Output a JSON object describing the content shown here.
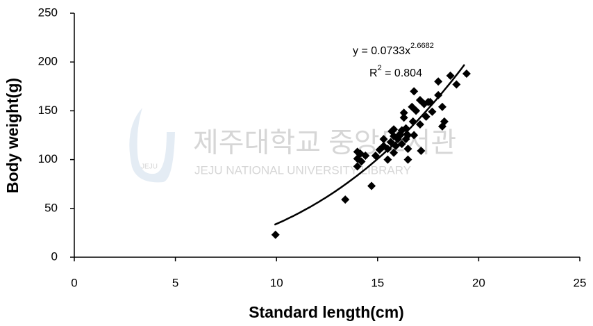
{
  "chart_data": {
    "type": "scatter",
    "x_label": "Standard length(cm)",
    "y_label": "Body weight(g)",
    "xlim": [
      0,
      25
    ],
    "xticks": [
      0,
      5,
      10,
      15,
      20,
      25
    ],
    "ylim": [
      0,
      250
    ],
    "yticks": [
      0,
      50,
      100,
      150,
      200,
      250
    ],
    "grid": false,
    "color": "#000000",
    "x": [
      9.95,
      13.4,
      14.7,
      14.0,
      14.0,
      14.0,
      14.15,
      14.4,
      14.9,
      15.3,
      15.3,
      15.5,
      15.65,
      15.7,
      15.8,
      15.8,
      15.9,
      16.0,
      16.1,
      16.2,
      16.2,
      16.3,
      16.3,
      16.4,
      16.4,
      16.5,
      15.5,
      15.8,
      16.5,
      16.5,
      16.75,
      16.8,
      16.8,
      16.9,
      17.1,
      17.1,
      17.15,
      17.3,
      17.4,
      17.5,
      17.6,
      17.7,
      18.0,
      18.0,
      18.2,
      18.3,
      18.2,
      18.6,
      18.9,
      19.4,
      16.7,
      15.1,
      14.2
    ],
    "values": [
      23,
      59,
      73,
      108,
      101,
      93,
      106,
      104,
      104,
      114,
      121,
      111,
      118,
      129,
      131,
      124,
      114,
      121,
      126,
      130,
      116,
      148,
      143,
      132,
      121,
      125,
      100,
      107,
      111,
      100,
      139,
      125,
      170,
      150,
      136,
      161,
      109,
      157,
      144,
      159,
      159,
      149,
      166,
      180,
      154,
      139,
      134,
      186,
      177,
      188,
      154,
      110,
      98
    ],
    "trendline": {
      "coefficient": 0.0733,
      "exponent": 2.6682,
      "x_range": [
        9.9,
        19.3
      ],
      "color": "#000000"
    },
    "annotations": {
      "equation": {
        "text": "y = 0.0733x",
        "sup": "2.6682"
      },
      "r2": {
        "text": "R",
        "sup": "2",
        "rest": " = 0.804"
      }
    }
  },
  "watermark": {
    "title": "제주대학교 중앙도서관",
    "subtitle": "JEJU NATIONAL UNIVERSITY LIBRARY",
    "logo": "JEJU"
  }
}
